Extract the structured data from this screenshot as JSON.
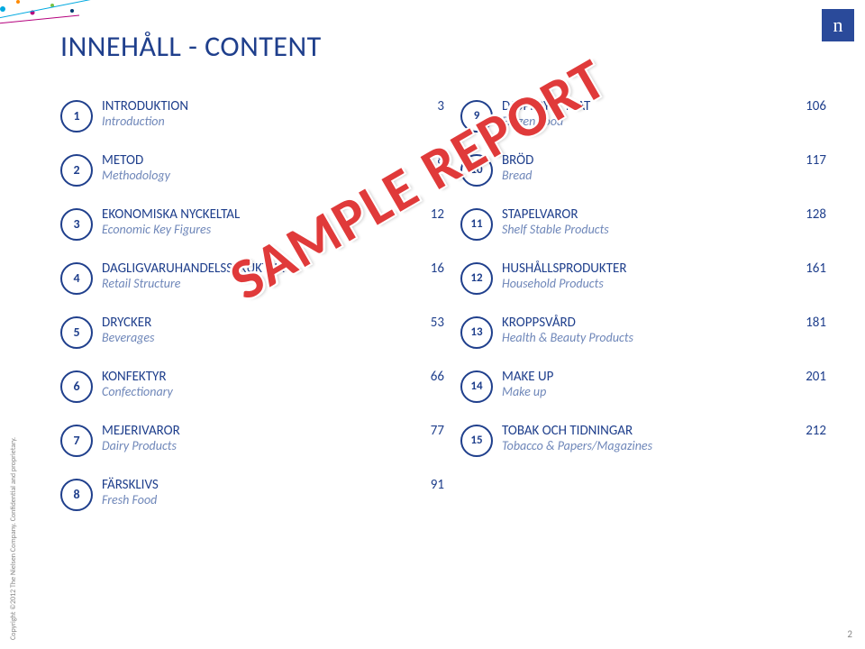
{
  "colors": {
    "brand": "#1f3f8c",
    "brand_text": "#1f3f8c",
    "italic": "#6f87b9",
    "watermark": "#e03a3a",
    "logo_bg": "#2a4a9a",
    "logo_fg": "#ffffff",
    "decor": [
      "#00a9e0",
      "#ff8a00",
      "#b5007d",
      "#7ac143",
      "#003a70"
    ]
  },
  "title": "INNEHÅLL - CONTENT",
  "logo_letter": "n",
  "watermark": "SAMPLE REPORT",
  "copyright": "Copyright ©2012 The Nielsen Company. Confidential and proprietary.",
  "slide_number": "2",
  "left": [
    {
      "n": "1",
      "sv": "INTRODUKTION",
      "en": "Introduction",
      "p": "3"
    },
    {
      "n": "2",
      "sv": "METOD",
      "en": "Methodology",
      "p": "8"
    },
    {
      "n": "3",
      "sv": "EKONOMISKA NYCKELTAL",
      "en": "Economic Key Figures",
      "p": "12"
    },
    {
      "n": "4",
      "sv": "DAGLIGVARUHANDELSSTRUKTUR",
      "en": "Retail Structure",
      "p": "16"
    },
    {
      "n": "5",
      "sv": "DRYCKER",
      "en": "Beverages",
      "p": "53"
    },
    {
      "n": "6",
      "sv": "KONFEKTYR",
      "en": "Confectionary",
      "p": "66"
    },
    {
      "n": "7",
      "sv": "MEJERIVAROR",
      "en": "Dairy Products",
      "p": "77"
    },
    {
      "n": "8",
      "sv": "FÄRSKLIVS",
      "en": "Fresh Food",
      "p": "91"
    }
  ],
  "right": [
    {
      "n": "9",
      "sv": "DJUPFRYST MAT",
      "en": "Frozen Food",
      "p": "106"
    },
    {
      "n": "10",
      "sv": "BRÖD",
      "en": "Bread",
      "p": "117"
    },
    {
      "n": "11",
      "sv": "STAPELVAROR",
      "en": "Shelf Stable Products",
      "p": "128"
    },
    {
      "n": "12",
      "sv": "HUSHÅLLSPRODUKTER",
      "en": "Household Products",
      "p": "161"
    },
    {
      "n": "13",
      "sv": "KROPPSVÅRD",
      "en": "Health & Beauty Products",
      "p": "181"
    },
    {
      "n": "14",
      "sv": "MAKE UP",
      "en": "Make up",
      "p": "201"
    },
    {
      "n": "15",
      "sv": "TOBAK OCH TIDNINGAR",
      "en": "Tobacco & Papers/Magazines",
      "p": "212"
    }
  ]
}
